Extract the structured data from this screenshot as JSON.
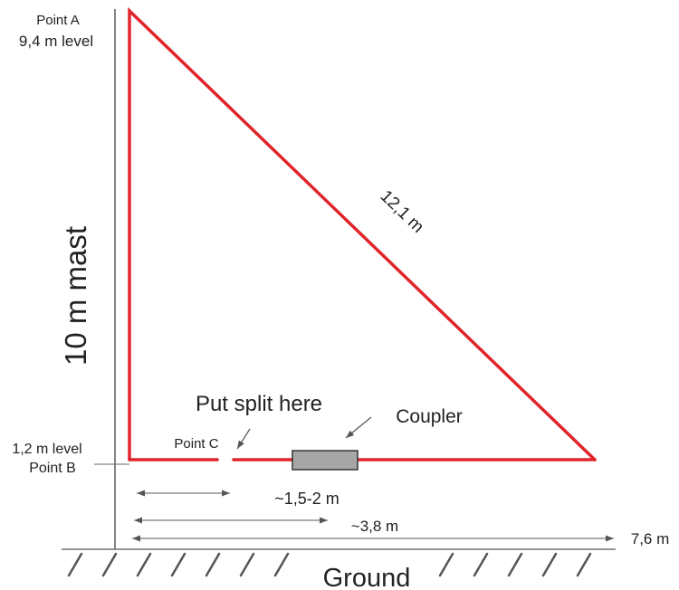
{
  "labels": {
    "point_a": "Point A",
    "level_a": "9,4 m level",
    "mast": "10 m mast",
    "hypotenuse": "12,1 m",
    "split_note": "Put split here",
    "coupler": "Coupler",
    "point_c": "Point C",
    "level_b": "1,2 m level",
    "point_b": "Point B",
    "dim_split": "~1,5-2 m",
    "dim_coupler": "~3,8  m",
    "dim_total": "7,6  m",
    "ground": "Ground"
  },
  "colors": {
    "wire": "#e0242b",
    "lines": "#444444",
    "coupler_fill": "#a6a6a6"
  }
}
